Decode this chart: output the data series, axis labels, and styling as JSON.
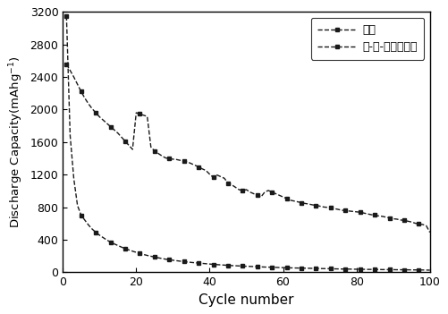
{
  "title": "",
  "xlabel": "Cycle number",
  "ylabel": "Discharge Capacity(mAhg$^{-1}$)",
  "xlim": [
    0,
    100
  ],
  "ylim": [
    0,
    3200
  ],
  "xticks": [
    0,
    20,
    40,
    60,
    80,
    100
  ],
  "yticks": [
    0,
    400,
    800,
    1200,
    1600,
    2000,
    2400,
    2800,
    3200
  ],
  "legend1": "硅源",
  "legend2": "硅-锡-碗复合材料",
  "line_color": "#1a1a1a",
  "background_color": "#ffffff",
  "curve1_x": [
    1,
    2,
    3,
    4,
    5,
    6,
    7,
    8,
    9,
    10,
    11,
    12,
    13,
    14,
    15,
    16,
    17,
    18,
    19,
    20,
    21,
    22,
    23,
    24,
    25,
    26,
    27,
    28,
    29,
    30,
    31,
    32,
    33,
    34,
    35,
    36,
    37,
    38,
    39,
    40,
    41,
    42,
    43,
    44,
    45,
    46,
    47,
    48,
    49,
    50,
    51,
    52,
    53,
    54,
    55,
    56,
    57,
    58,
    59,
    60,
    61,
    62,
    63,
    64,
    65,
    66,
    67,
    68,
    69,
    70,
    71,
    72,
    73,
    74,
    75,
    76,
    77,
    78,
    79,
    80,
    81,
    82,
    83,
    84,
    85,
    86,
    87,
    88,
    89,
    90,
    91,
    92,
    93,
    94,
    95,
    96,
    97,
    98,
    99,
    100
  ],
  "curve1_y": [
    3150,
    1680,
    1150,
    820,
    700,
    640,
    580,
    530,
    490,
    455,
    425,
    395,
    370,
    348,
    328,
    308,
    290,
    274,
    258,
    244,
    230,
    218,
    206,
    196,
    186,
    177,
    168,
    160,
    153,
    147,
    141,
    135,
    130,
    125,
    120,
    116,
    112,
    108,
    104,
    100,
    96,
    93,
    90,
    87,
    84,
    81,
    79,
    77,
    75,
    73,
    71,
    69,
    67,
    65,
    63,
    62,
    60,
    59,
    57,
    56,
    55,
    53,
    52,
    51,
    50,
    49,
    48,
    47,
    46,
    45,
    44,
    43,
    42,
    41,
    40,
    39,
    38,
    38,
    37,
    36,
    36,
    35,
    34,
    34,
    33,
    33,
    32,
    32,
    31,
    31,
    30,
    30,
    29,
    29,
    28,
    28,
    27,
    27,
    26,
    25
  ],
  "curve2_x": [
    1,
    2,
    3,
    4,
    5,
    6,
    7,
    8,
    9,
    10,
    11,
    12,
    13,
    14,
    15,
    16,
    17,
    18,
    19,
    20,
    21,
    22,
    23,
    24,
    25,
    26,
    27,
    28,
    29,
    30,
    31,
    32,
    33,
    34,
    35,
    36,
    37,
    38,
    39,
    40,
    41,
    42,
    43,
    44,
    45,
    46,
    47,
    48,
    49,
    50,
    51,
    52,
    53,
    54,
    55,
    56,
    57,
    58,
    59,
    60,
    61,
    62,
    63,
    64,
    65,
    66,
    67,
    68,
    69,
    70,
    71,
    72,
    73,
    74,
    75,
    76,
    77,
    78,
    79,
    80,
    81,
    82,
    83,
    84,
    85,
    86,
    87,
    88,
    89,
    90,
    91,
    92,
    93,
    94,
    95,
    96,
    97,
    98,
    99,
    100
  ],
  "curve2_y": [
    2560,
    2480,
    2400,
    2310,
    2220,
    2140,
    2070,
    2010,
    1960,
    1910,
    1870,
    1830,
    1790,
    1750,
    1710,
    1660,
    1610,
    1560,
    1510,
    1960,
    1945,
    1930,
    1915,
    1540,
    1490,
    1460,
    1430,
    1405,
    1395,
    1390,
    1385,
    1375,
    1365,
    1355,
    1335,
    1315,
    1295,
    1270,
    1250,
    1205,
    1165,
    1195,
    1175,
    1155,
    1095,
    1075,
    1045,
    1015,
    1005,
    1015,
    985,
    965,
    945,
    925,
    985,
    1005,
    985,
    965,
    945,
    925,
    905,
    885,
    875,
    865,
    855,
    845,
    838,
    828,
    822,
    812,
    802,
    797,
    792,
    782,
    772,
    762,
    757,
    752,
    747,
    742,
    737,
    727,
    717,
    707,
    702,
    692,
    687,
    677,
    667,
    657,
    652,
    642,
    637,
    627,
    617,
    602,
    592,
    587,
    572,
    490
  ]
}
